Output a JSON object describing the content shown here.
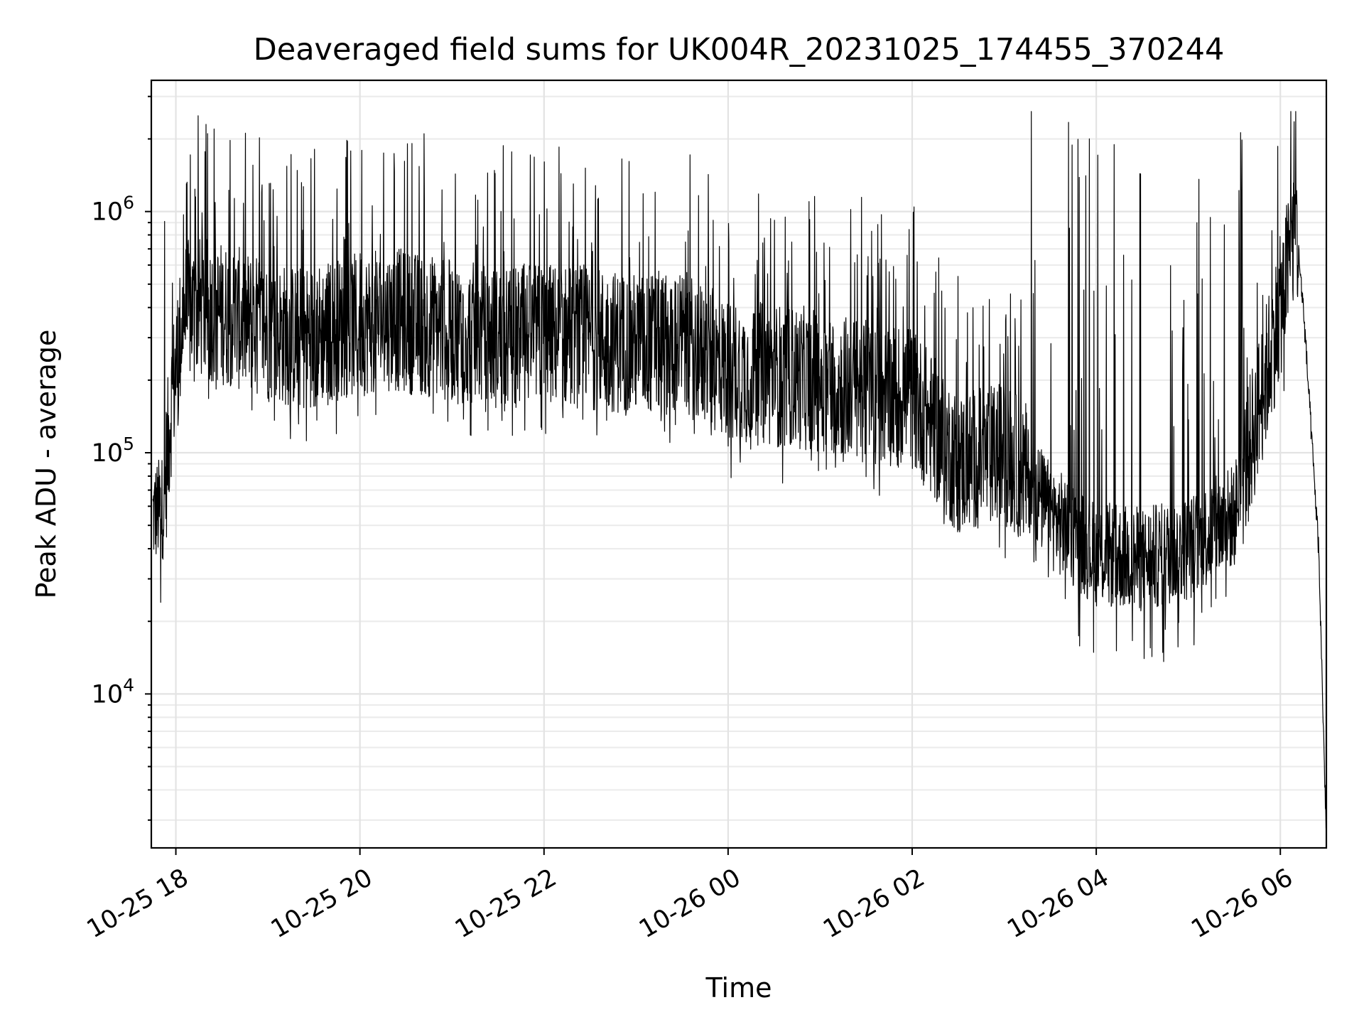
{
  "chart_data": {
    "type": "line",
    "title": "Deaveraged field sums for UK004R_20231025_174455_370244",
    "xlabel": "Time",
    "ylabel": "Peak ADU - average",
    "yscale": "log",
    "ylim": [
      2300,
      3500000
    ],
    "xlim": [
      "2023-10-25 17:44",
      "2023-10-26 06:30"
    ],
    "x_ticks": [
      {
        "value": "2023-10-25 18:00",
        "label": "10-25 18"
      },
      {
        "value": "2023-10-25 20:00",
        "label": "10-25 20"
      },
      {
        "value": "2023-10-25 22:00",
        "label": "10-25 22"
      },
      {
        "value": "2023-10-26 00:00",
        "label": "10-26 00"
      },
      {
        "value": "2023-10-26 02:00",
        "label": "10-26 02"
      },
      {
        "value": "2023-10-26 04:00",
        "label": "10-26 04"
      },
      {
        "value": "2023-10-26 06:00",
        "label": "10-26 06"
      }
    ],
    "y_ticks": [
      {
        "value": 10000,
        "base": "10",
        "exp": "4"
      },
      {
        "value": 100000,
        "base": "10",
        "exp": "5"
      },
      {
        "value": 1000000,
        "base": "10",
        "exp": "6"
      }
    ],
    "grid": true,
    "line_color": "#000000",
    "series": [
      {
        "x": [
          "2023-10-25 17:45",
          "2023-10-25 17:52",
          "2023-10-25 17:57",
          "2023-10-25 18:05",
          "2023-10-25 18:15",
          "2023-10-25 18:30",
          "2023-10-25 18:45",
          "2023-10-25 19:00",
          "2023-10-25 19:20",
          "2023-10-25 19:40",
          "2023-10-25 20:00",
          "2023-10-25 20:20",
          "2023-10-25 20:40",
          "2023-10-25 21:00",
          "2023-10-25 21:30",
          "2023-10-25 22:00",
          "2023-10-25 22:30",
          "2023-10-25 23:00",
          "2023-10-25 23:30",
          "2023-10-26 00:00",
          "2023-10-26 00:30",
          "2023-10-26 01:00",
          "2023-10-26 01:30",
          "2023-10-26 02:00",
          "2023-10-26 02:30",
          "2023-10-26 03:00",
          "2023-10-26 03:15",
          "2023-10-26 03:30",
          "2023-10-26 04:00",
          "2023-10-26 04:30",
          "2023-10-26 05:00",
          "2023-10-26 05:30",
          "2023-10-26 05:50",
          "2023-10-26 06:00",
          "2023-10-26 06:10",
          "2023-10-26 06:15",
          "2023-10-26 06:25",
          "2023-10-26 06:30"
        ],
        "values": [
          55000,
          60000,
          160000,
          380000,
          400000,
          380000,
          350000,
          320000,
          300000,
          320000,
          340000,
          360000,
          340000,
          320000,
          300000,
          310000,
          300000,
          280000,
          290000,
          220000,
          210000,
          200000,
          180000,
          170000,
          90000,
          100000,
          80000,
          55000,
          38000,
          36000,
          40000,
          55000,
          200000,
          400000,
          900000,
          400000,
          40000,
          2500
        ]
      }
    ]
  }
}
